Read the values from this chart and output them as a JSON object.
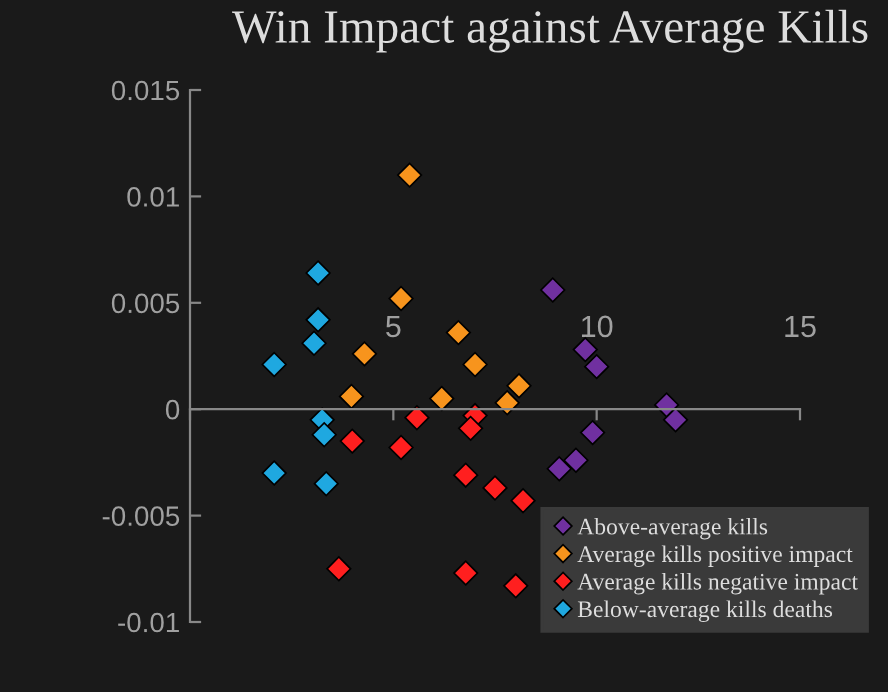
{
  "chart_data": {
    "type": "scatter",
    "title": "Win Impact against Average Kills",
    "marker": "diamond",
    "legend": "bottom right",
    "grid": false,
    "xlim": [
      0,
      15
    ],
    "xticks": [
      {
        "value": 0,
        "label": null
      },
      5,
      10,
      15
    ],
    "ylim": [
      -0.01,
      0.015
    ],
    "yticks": [
      -0.01,
      -0.005,
      0,
      0.005,
      0.01,
      0.015
    ],
    "series": [
      {
        "name": "Above-average kills",
        "color": "#7030a0",
        "x": [
          8.92,
          9.72,
          10.0,
          11.72,
          11.94,
          9.9,
          9.49,
          9.08
        ],
        "values": [
          0.0056,
          0.0028,
          0.002,
          0.0002,
          -0.0005,
          -0.0011,
          -0.0024,
          -0.0028
        ]
      },
      {
        "name": "Average kills positive impact",
        "color": "#f7941d",
        "x": [
          5.4,
          5.19,
          4.29,
          3.97,
          6.6,
          7.01,
          6.19,
          8.09,
          7.8
        ],
        "values": [
          0.011,
          0.0052,
          0.0026,
          0.0006,
          0.0036,
          0.0021,
          0.0005,
          0.0011,
          0.0003
        ]
      },
      {
        "name": "Average kills negative impact",
        "color": "#ff1f1f",
        "x": [
          5.58,
          3.99,
          5.19,
          3.66,
          7.01,
          6.9,
          6.78,
          7.5,
          8.19,
          6.78,
          8.01
        ],
        "values": [
          -0.0004,
          -0.0015,
          -0.0018,
          -0.0075,
          -0.0003,
          -0.0009,
          -0.0031,
          -0.0037,
          -0.0043,
          -0.0077,
          -0.0083
        ]
      },
      {
        "name": "Below-average kills deaths",
        "color": "#1fa8e0",
        "x": [
          2.07,
          3.15,
          3.15,
          3.05,
          3.25,
          3.3,
          2.07,
          3.35
        ],
        "values": [
          0.0021,
          0.0064,
          0.0042,
          0.0031,
          -0.0005,
          -0.0012,
          -0.003,
          -0.0035
        ]
      }
    ]
  }
}
